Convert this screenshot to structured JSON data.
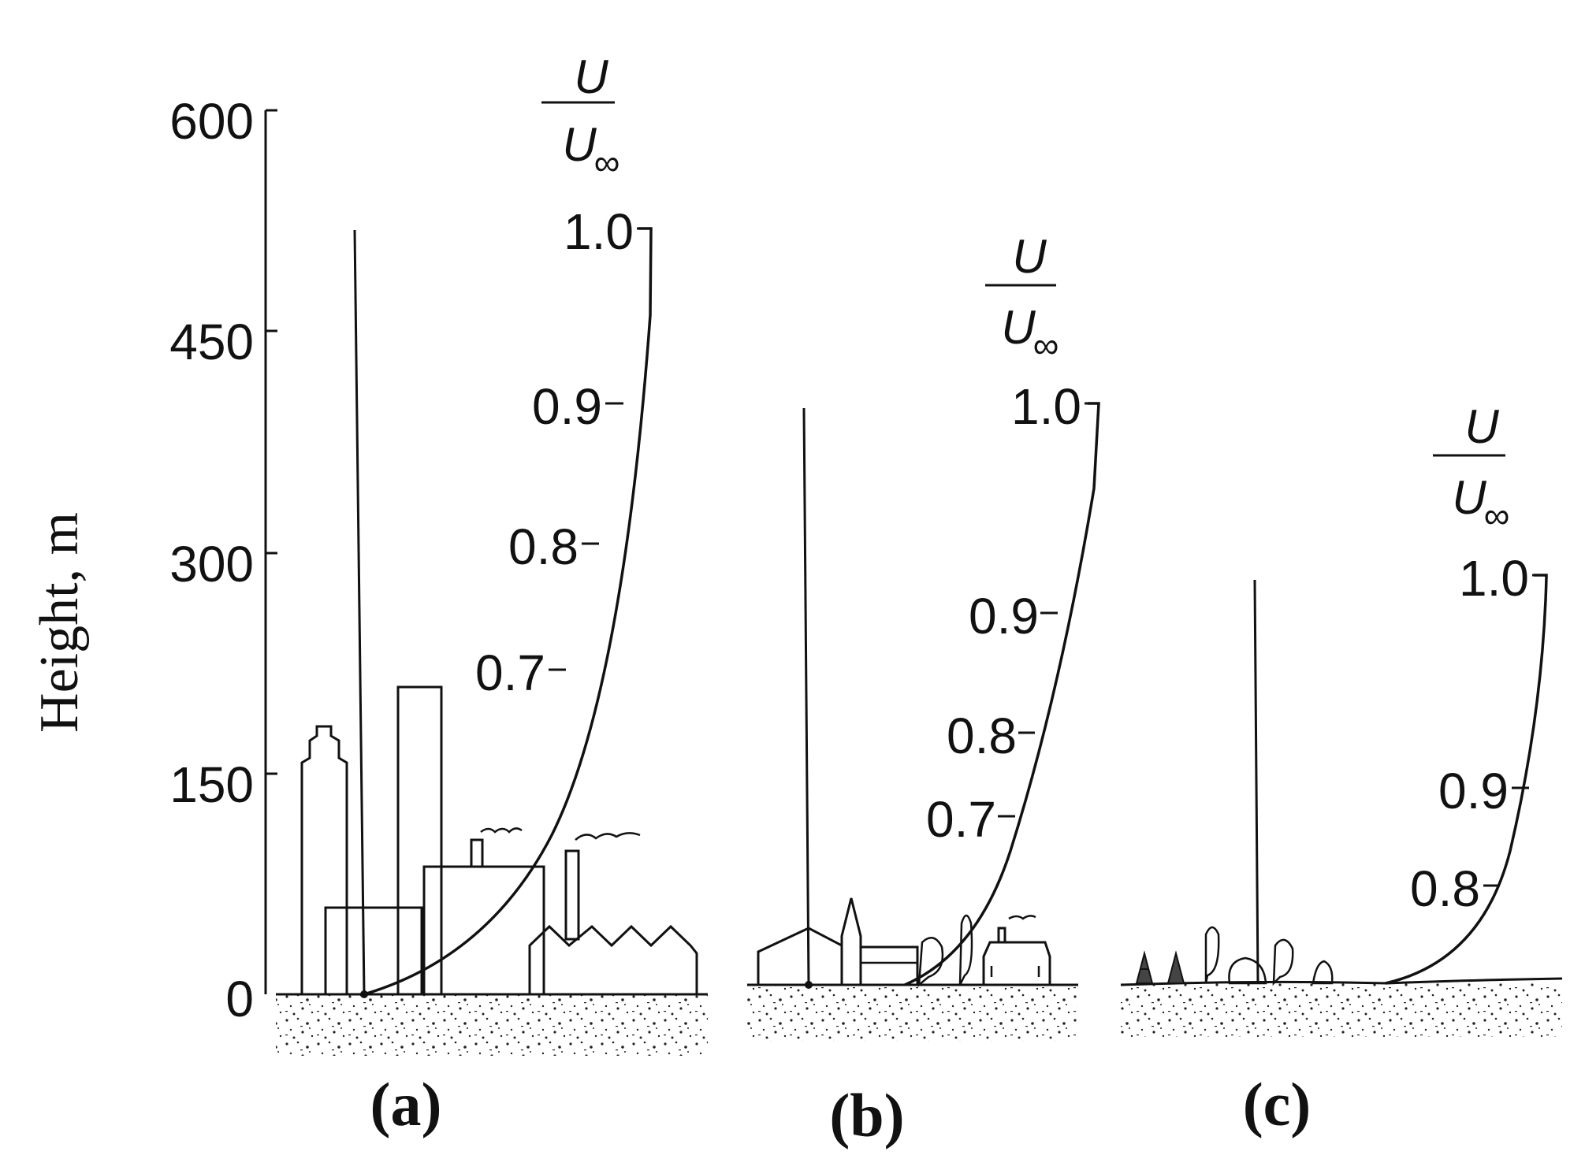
{
  "y_axis": {
    "label": "Height, m",
    "ticks": [
      "600",
      "450",
      "300",
      "150",
      "0"
    ]
  },
  "ratio": {
    "numerator": "U",
    "denominator": "U",
    "subscript": "∞"
  },
  "panels": [
    {
      "id": "a",
      "label": "(a)",
      "curve_labels": [
        "1.0",
        "0.9",
        "0.8",
        "0.7"
      ]
    },
    {
      "id": "b",
      "label": "(b)",
      "curve_labels": [
        "1.0",
        "0.9",
        "0.8",
        "0.7"
      ]
    },
    {
      "id": "c",
      "label": "(c)",
      "curve_labels": [
        "1.0",
        "0.9",
        "0.8"
      ]
    }
  ]
}
